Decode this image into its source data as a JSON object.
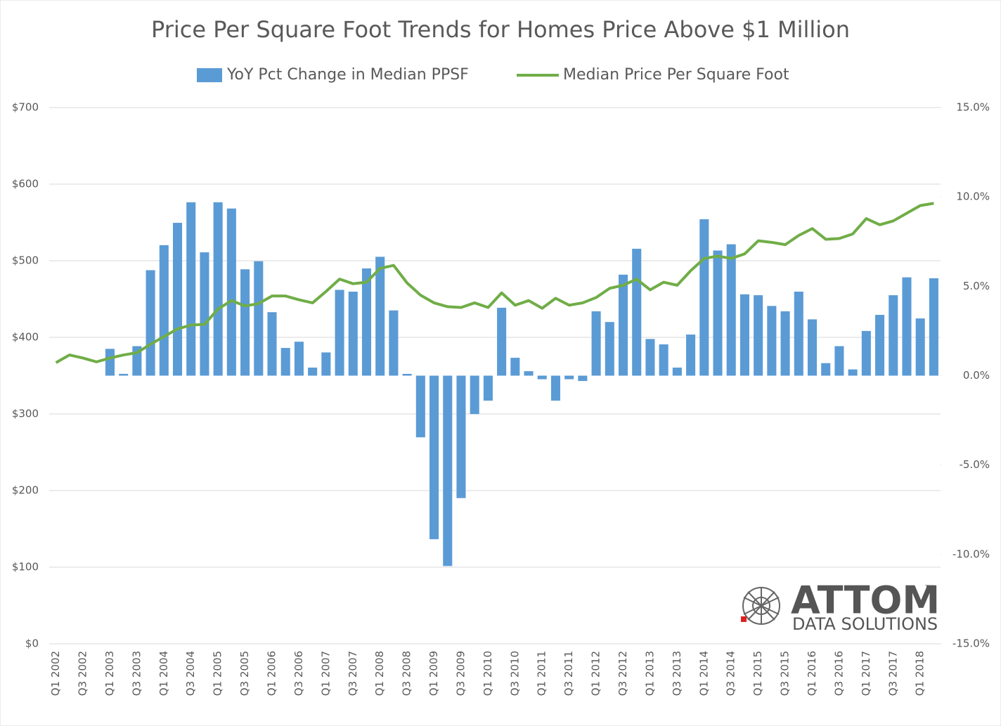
{
  "chart_data": {
    "type": "bar-line",
    "title": "Price Per Square Foot Trends for Homes Price Above $1 Million",
    "categories": [
      "Q1 2002",
      null,
      "Q3 2002",
      null,
      "Q1 2003",
      null,
      "Q3 2003",
      null,
      "Q1 2004",
      null,
      "Q3 2004",
      null,
      "Q1 2005",
      null,
      "Q3 2005",
      null,
      "Q1 2006",
      null,
      "Q3 2006",
      null,
      "Q1 2007",
      null,
      "Q3 2007",
      null,
      "Q1 2008",
      null,
      "Q3 2008",
      null,
      "Q1 2009",
      null,
      "Q3 2009",
      null,
      "Q1 2010",
      null,
      "Q3 2010",
      null,
      "Q1 2011",
      null,
      "Q3 2011",
      null,
      "Q1 2012",
      null,
      "Q3 2012",
      null,
      "Q1 2013",
      null,
      "Q3 2013",
      null,
      "Q1 2014",
      null,
      "Q3 2014",
      null,
      "Q1 2015",
      null,
      "Q3 2015",
      null,
      "Q1 2016",
      null,
      "Q3 2016",
      null,
      "Q1 2017",
      null,
      "Q3 2017",
      null,
      "Q1 2018",
      null
    ],
    "series": [
      {
        "name": "YoY Pct Change in Median PPSF",
        "type": "bar",
        "axis": "y2",
        "color": "#5b9bd5",
        "values": [
          null,
          null,
          null,
          null,
          1.5,
          0.1,
          1.65,
          5.9,
          7.3,
          8.55,
          9.7,
          6.9,
          9.7,
          9.35,
          5.95,
          6.4,
          3.55,
          1.55,
          1.9,
          0.45,
          1.3,
          4.8,
          4.7,
          6.0,
          6.65,
          3.65,
          0.1,
          -3.45,
          -9.15,
          -10.65,
          -6.85,
          -2.15,
          -1.4,
          3.8,
          1.0,
          0.25,
          -0.2,
          -1.4,
          -0.2,
          -0.3,
          3.6,
          3.0,
          5.65,
          7.1,
          2.05,
          1.75,
          0.45,
          2.3,
          8.75,
          7.0,
          7.35,
          4.55,
          4.5,
          3.9,
          3.6,
          4.7,
          3.15,
          0.7,
          1.65,
          0.35,
          2.5,
          3.4,
          4.5,
          5.5,
          3.2,
          5.45
        ]
      },
      {
        "name": "Median Price Per Square Foot",
        "type": "line",
        "axis": "y",
        "color": "#70ad47",
        "values": [
          367,
          377,
          373,
          368,
          373,
          377,
          380,
          391,
          401,
          411,
          416,
          417,
          437,
          448,
          441,
          444,
          454,
          454,
          449,
          445,
          460,
          476,
          470,
          472,
          490,
          494,
          471,
          455,
          445,
          440,
          439,
          445,
          439,
          458,
          442,
          448,
          438,
          451,
          442,
          445,
          452,
          464,
          468,
          476,
          462,
          472,
          468,
          487,
          503,
          506,
          503,
          509,
          526,
          524,
          521,
          533,
          542,
          528,
          529,
          535,
          555,
          547,
          552,
          562,
          572,
          575
        ]
      }
    ],
    "ylim": [
      0,
      700
    ],
    "yticks": [
      {
        "value": 0,
        "label": "$0"
      },
      {
        "value": 100,
        "label": "$100"
      },
      {
        "value": 200,
        "label": "$200"
      },
      {
        "value": 300,
        "label": "$300"
      },
      {
        "value": 400,
        "label": "$400"
      },
      {
        "value": 500,
        "label": "$500"
      },
      {
        "value": 600,
        "label": "$600"
      },
      {
        "value": 700,
        "label": "$700"
      }
    ],
    "y2lim": [
      -15,
      15
    ],
    "y2ticks": [
      {
        "value": -15,
        "label": "-15.0%"
      },
      {
        "value": -10,
        "label": "-10.0%"
      },
      {
        "value": -5,
        "label": "-5.0%"
      },
      {
        "value": 0,
        "label": "0.0%"
      },
      {
        "value": 5,
        "label": "5.0%"
      },
      {
        "value": 10,
        "label": "10.0%"
      },
      {
        "value": 15,
        "label": "15.0%"
      }
    ],
    "grid": true,
    "legend": "top"
  },
  "logo": {
    "name": "ATTOM",
    "trademark": "TM",
    "tagline": "DATA SOLUTIONS"
  }
}
